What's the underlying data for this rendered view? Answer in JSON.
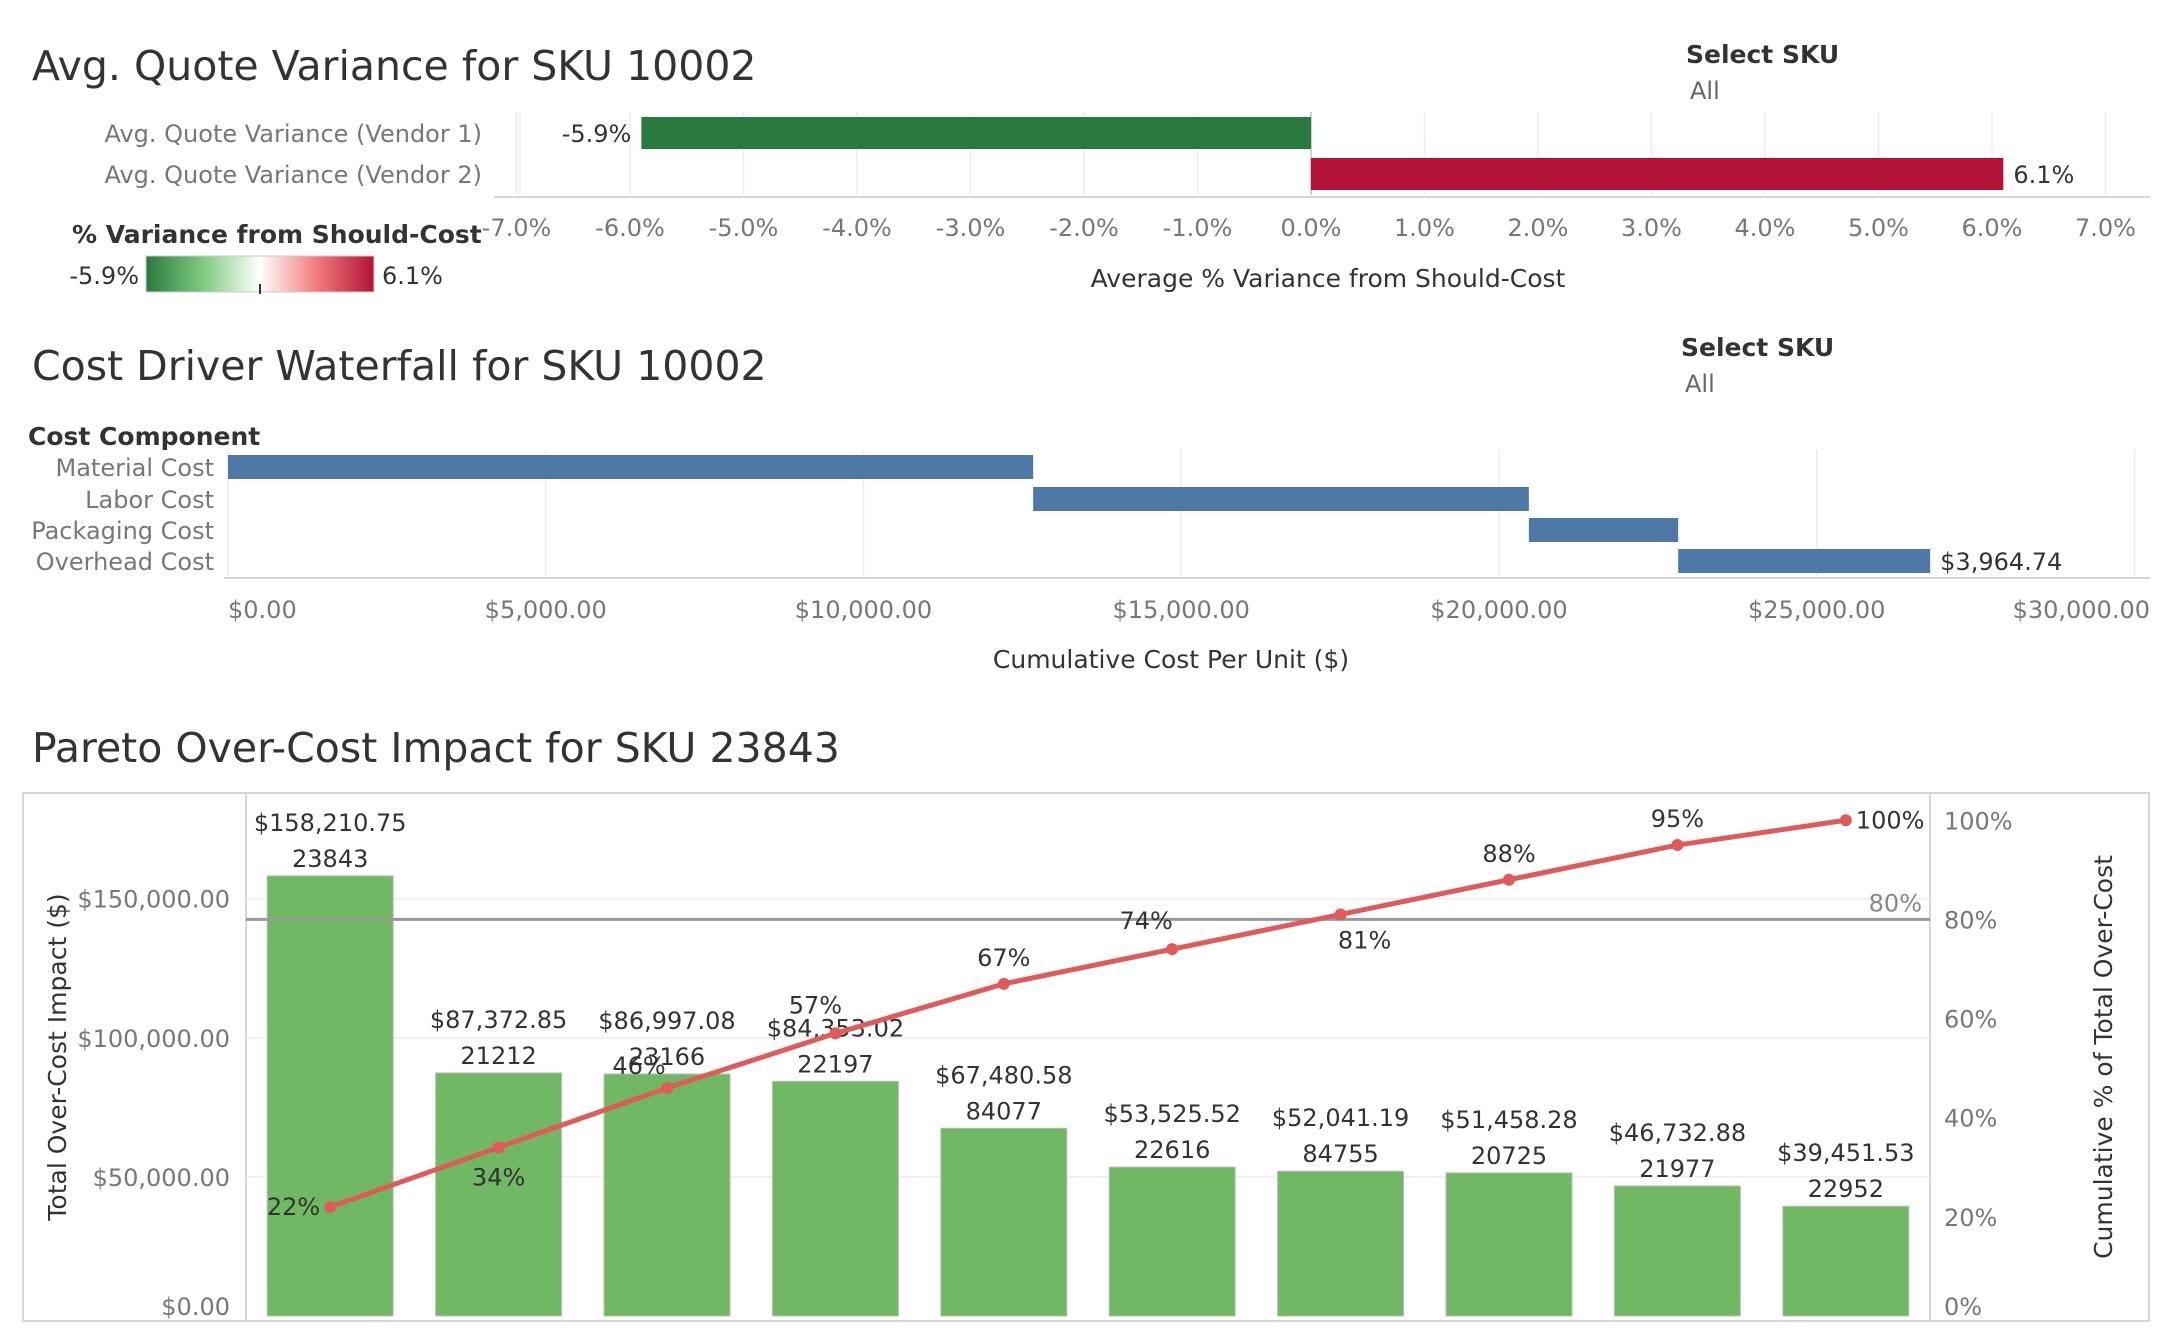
{
  "variance": {
    "title": "Avg. Quote Variance for SKU 10002",
    "filter": {
      "label": "Select SKU",
      "value": "All"
    },
    "legend": {
      "title": "% Variance from Should-Cost",
      "min_label": "-5.9%",
      "max_label": "6.1%",
      "colors": [
        "#2a7a3f",
        "#ffffff",
        "#b31237"
      ]
    }
  },
  "waterfall": {
    "title": "Cost Driver Waterfall for SKU 10002",
    "filter": {
      "label": "Select SKU",
      "value": "All"
    },
    "dimension_header": "Cost Component",
    "color": "#4e79a7"
  },
  "pareto": {
    "title": "Pareto Over-Cost Impact for SKU 23843",
    "bar_color": "#71b865",
    "line_color": "#e05a5a",
    "reference_label": "80%"
  },
  "chart_data": [
    {
      "type": "bar",
      "orientation": "horizontal",
      "categories": [
        "Avg. Quote Variance (Vendor 1)",
        "Avg. Quote Variance (Vendor 2)"
      ],
      "values": [
        -5.9,
        6.1
      ],
      "value_labels": [
        "-5.9%",
        "6.1%"
      ],
      "xlabel": "Average % Variance from Should-Cost",
      "xlim": [
        -7.5,
        7.5
      ],
      "xticks": [
        -7,
        -6,
        -5,
        -4,
        -3,
        -2,
        -1,
        0,
        1,
        2,
        3,
        4,
        5,
        6,
        7
      ],
      "xtick_labels": [
        "-7.0%",
        "-6.0%",
        "-5.0%",
        "-4.0%",
        "-3.0%",
        "-2.0%",
        "-1.0%",
        "0.0%",
        "1.0%",
        "2.0%",
        "3.0%",
        "4.0%",
        "5.0%",
        "6.0%",
        "7.0%"
      ],
      "grid": true
    },
    {
      "type": "bar",
      "subtype": "waterfall",
      "orientation": "horizontal",
      "categories": [
        "Material Cost",
        "Labor Cost",
        "Packaging Cost",
        "Overhead Cost"
      ],
      "values": [
        12670,
        7800,
        2350,
        3964.74
      ],
      "end_label": "$3,964.74",
      "xlabel": "Cumulative Cost Per Unit ($)",
      "xlim": [
        0,
        30000
      ],
      "xticks": [
        0,
        5000,
        10000,
        15000,
        20000,
        25000,
        30000
      ],
      "xtick_labels": [
        "$0.00",
        "$5,000.00",
        "$10,000.00",
        "$15,000.00",
        "$20,000.00",
        "$25,000.00",
        "$30,000.00"
      ],
      "grid": true
    },
    {
      "type": "bar",
      "subtype": "pareto",
      "categories": [
        "23843",
        "21212",
        "23166",
        "22197",
        "84077",
        "22616",
        "84755",
        "20725",
        "21977",
        "22952"
      ],
      "values": [
        158210.75,
        87372.85,
        86997.08,
        84353.02,
        67480.58,
        53525.52,
        52041.19,
        51458.28,
        46732.88,
        39451.53
      ],
      "value_labels": [
        "$158,210.75",
        "$87,372.85",
        "$86,997.08",
        "$84,353.02",
        "$67,480.58",
        "$53,525.52",
        "$52,041.19",
        "$51,458.28",
        "$46,732.88",
        "$39,451.53"
      ],
      "ylabel": "Total Over-Cost Impact ($)",
      "ylim": [
        0,
        188000
      ],
      "yticks": [
        0,
        50000,
        100000,
        150000
      ],
      "ytick_labels": [
        "$0.00",
        "$50,000.00",
        "$100,000.00",
        "$150,000.00"
      ],
      "line": {
        "name": "Cumulative % of Total Over-Cost",
        "values": [
          22,
          34,
          46,
          57,
          67,
          74,
          81,
          88,
          95,
          100
        ],
        "value_labels": [
          "22%",
          "34%",
          "46%",
          "57%",
          "67%",
          "74%",
          "81%",
          "88%",
          "95%",
          "100%"
        ]
      },
      "y2label": "Cumulative % of Total Over-Cost",
      "y2lim": [
        0,
        105.5
      ],
      "y2ticks": [
        0,
        20,
        40,
        60,
        80,
        100
      ],
      "y2tick_labels": [
        "0%",
        "20%",
        "40%",
        "60%",
        "80%",
        "100%"
      ],
      "reference_line": 80,
      "grid": true
    }
  ]
}
